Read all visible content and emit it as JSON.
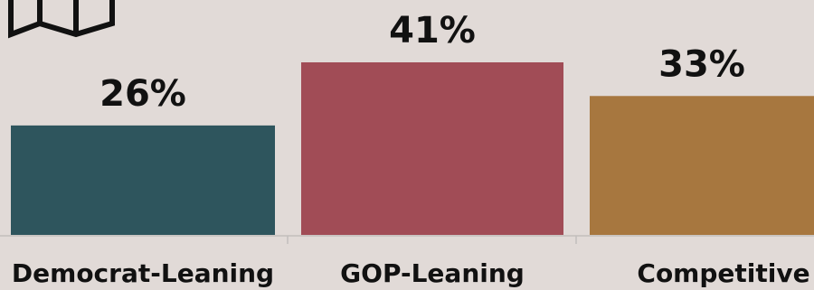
{
  "chart_data": {
    "type": "bar",
    "categories": [
      "Democrat-Leaning",
      "GOP-Leaning",
      "Competitive"
    ],
    "values": [
      26,
      41,
      33
    ],
    "value_labels": [
      "26%",
      "41%",
      "33%"
    ],
    "unit": "%",
    "colors": [
      "#2e555d",
      "#a14c56",
      "#a7773f"
    ],
    "ylim": [
      0,
      45
    ],
    "grid": false,
    "legend": "none"
  },
  "icons": {
    "logo": "map-icon"
  }
}
